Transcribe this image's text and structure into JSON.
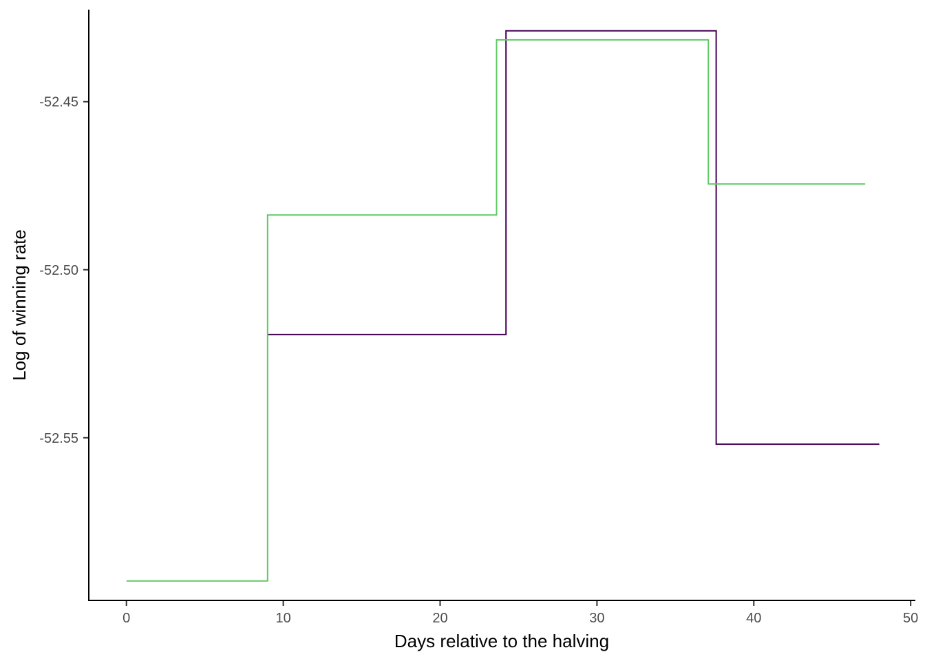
{
  "chart_data": {
    "type": "line",
    "step": "post",
    "xlabel": "Days relative to the halving",
    "ylabel": "Log of winning rate",
    "xlim": [
      -2.4,
      50.3
    ],
    "ylim": [
      -52.5984,
      -52.4226
    ],
    "xticks": [
      0,
      10,
      20,
      30,
      40,
      50
    ],
    "xtick_labels": [
      "0",
      "10",
      "20",
      "30",
      "40",
      "50"
    ],
    "yticks": [
      -52.45,
      -52.5,
      -52.55
    ],
    "ytick_labels": [
      "-52.45",
      "-52.50",
      "-52.55"
    ],
    "grid": false,
    "legend": "none",
    "series": [
      {
        "color": "#440154",
        "points": [
          {
            "x": 9.0,
            "y": -52.5193
          },
          {
            "x": 24.2,
            "y": -52.4289
          },
          {
            "x": 37.6,
            "y": -52.5519
          },
          {
            "x": 48.0,
            "y": -52.5519
          }
        ]
      },
      {
        "color": "#5ec962",
        "points": [
          {
            "x": 0.0,
            "y": -52.5926
          },
          {
            "x": 9.0,
            "y": -52.4837
          },
          {
            "x": 23.6,
            "y": -52.4316
          },
          {
            "x": 37.1,
            "y": -52.4745
          },
          {
            "x": 47.1,
            "y": -52.4745
          }
        ]
      }
    ]
  }
}
